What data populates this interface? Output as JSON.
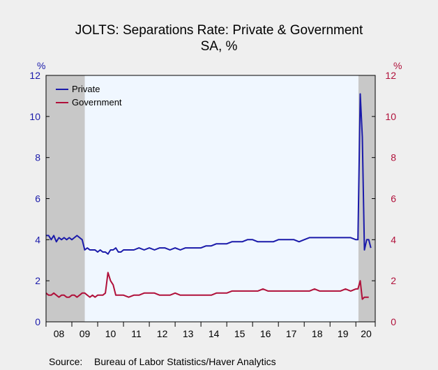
{
  "chart_data": {
    "type": "line",
    "title": "JOLTS: Separations Rate: Private & Government",
    "subtitle": "SA, %",
    "left_axis": {
      "unit_label": "%",
      "ticks": [
        0,
        2,
        4,
        6,
        8,
        10,
        12
      ],
      "range": [
        0,
        12
      ],
      "color": "#1a1aaa"
    },
    "right_axis": {
      "unit_label": "%",
      "ticks": [
        0,
        2,
        4,
        6,
        8,
        10,
        12
      ],
      "range": [
        0,
        12
      ],
      "color": "#b0103a"
    },
    "x_axis": {
      "range": [
        2008.0,
        2020.75
      ],
      "ticks": [
        2008,
        2009,
        2010,
        2011,
        2012,
        2013,
        2014,
        2015,
        2016,
        2017,
        2018,
        2019,
        2020,
        2020.75
      ],
      "labels": [
        {
          "label": "08",
          "x": 2008.5
        },
        {
          "label": "09",
          "x": 2009.5
        },
        {
          "label": "10",
          "x": 2010.5
        },
        {
          "label": "11",
          "x": 2011.5
        },
        {
          "label": "12",
          "x": 2012.5
        },
        {
          "label": "13",
          "x": 2013.5
        },
        {
          "label": "14",
          "x": 2014.5
        },
        {
          "label": "15",
          "x": 2015.5
        },
        {
          "label": "16",
          "x": 2016.5
        },
        {
          "label": "17",
          "x": 2017.5
        },
        {
          "label": "18",
          "x": 2018.5
        },
        {
          "label": "19",
          "x": 2019.5
        },
        {
          "label": "20",
          "x": 2020.4
        }
      ]
    },
    "recessions": [
      {
        "start": 2008.0,
        "end": 2009.5
      },
      {
        "start": 2020.1,
        "end": 2020.75
      }
    ],
    "grid": false,
    "legend_placement": "top-left",
    "series": [
      {
        "name": "Private",
        "color": "#1a1aaa",
        "points": [
          [
            2008.0,
            4.2
          ],
          [
            2008.1,
            4.2
          ],
          [
            2008.2,
            4.0
          ],
          [
            2008.3,
            4.2
          ],
          [
            2008.4,
            3.9
          ],
          [
            2008.5,
            4.1
          ],
          [
            2008.6,
            4.0
          ],
          [
            2008.7,
            4.1
          ],
          [
            2008.8,
            4.0
          ],
          [
            2008.9,
            4.1
          ],
          [
            2009.0,
            4.0
          ],
          [
            2009.1,
            4.1
          ],
          [
            2009.2,
            4.2
          ],
          [
            2009.3,
            4.1
          ],
          [
            2009.4,
            4.0
          ],
          [
            2009.5,
            3.5
          ],
          [
            2009.6,
            3.6
          ],
          [
            2009.7,
            3.5
          ],
          [
            2009.8,
            3.5
          ],
          [
            2009.9,
            3.5
          ],
          [
            2010.0,
            3.4
          ],
          [
            2010.1,
            3.5
          ],
          [
            2010.2,
            3.4
          ],
          [
            2010.3,
            3.4
          ],
          [
            2010.4,
            3.3
          ],
          [
            2010.5,
            3.5
          ],
          [
            2010.6,
            3.5
          ],
          [
            2010.7,
            3.6
          ],
          [
            2010.8,
            3.4
          ],
          [
            2010.9,
            3.4
          ],
          [
            2011.0,
            3.5
          ],
          [
            2011.2,
            3.5
          ],
          [
            2011.4,
            3.5
          ],
          [
            2011.6,
            3.6
          ],
          [
            2011.8,
            3.5
          ],
          [
            2012.0,
            3.6
          ],
          [
            2012.2,
            3.5
          ],
          [
            2012.4,
            3.6
          ],
          [
            2012.6,
            3.6
          ],
          [
            2012.8,
            3.5
          ],
          [
            2013.0,
            3.6
          ],
          [
            2013.2,
            3.5
          ],
          [
            2013.4,
            3.6
          ],
          [
            2013.6,
            3.6
          ],
          [
            2013.8,
            3.6
          ],
          [
            2014.0,
            3.6
          ],
          [
            2014.2,
            3.7
          ],
          [
            2014.4,
            3.7
          ],
          [
            2014.6,
            3.8
          ],
          [
            2014.8,
            3.8
          ],
          [
            2015.0,
            3.8
          ],
          [
            2015.2,
            3.9
          ],
          [
            2015.4,
            3.9
          ],
          [
            2015.6,
            3.9
          ],
          [
            2015.8,
            4.0
          ],
          [
            2016.0,
            4.0
          ],
          [
            2016.2,
            3.9
          ],
          [
            2016.4,
            3.9
          ],
          [
            2016.6,
            3.9
          ],
          [
            2016.8,
            3.9
          ],
          [
            2017.0,
            4.0
          ],
          [
            2017.2,
            4.0
          ],
          [
            2017.4,
            4.0
          ],
          [
            2017.6,
            4.0
          ],
          [
            2017.8,
            3.9
          ],
          [
            2018.0,
            4.0
          ],
          [
            2018.2,
            4.1
          ],
          [
            2018.4,
            4.1
          ],
          [
            2018.6,
            4.1
          ],
          [
            2018.8,
            4.1
          ],
          [
            2019.0,
            4.1
          ],
          [
            2019.2,
            4.1
          ],
          [
            2019.4,
            4.1
          ],
          [
            2019.6,
            4.1
          ],
          [
            2019.8,
            4.1
          ],
          [
            2020.0,
            4.0
          ],
          [
            2020.08,
            4.0
          ],
          [
            2020.17,
            11.1
          ],
          [
            2020.25,
            9.0
          ],
          [
            2020.33,
            3.5
          ],
          [
            2020.42,
            4.0
          ],
          [
            2020.5,
            4.0
          ],
          [
            2020.58,
            3.6
          ]
        ]
      },
      {
        "name": "Government",
        "color": "#b0103a",
        "points": [
          [
            2008.0,
            1.4
          ],
          [
            2008.1,
            1.3
          ],
          [
            2008.2,
            1.3
          ],
          [
            2008.3,
            1.4
          ],
          [
            2008.4,
            1.3
          ],
          [
            2008.5,
            1.2
          ],
          [
            2008.6,
            1.3
          ],
          [
            2008.7,
            1.3
          ],
          [
            2008.8,
            1.2
          ],
          [
            2008.9,
            1.2
          ],
          [
            2009.0,
            1.3
          ],
          [
            2009.1,
            1.3
          ],
          [
            2009.2,
            1.2
          ],
          [
            2009.3,
            1.3
          ],
          [
            2009.4,
            1.4
          ],
          [
            2009.5,
            1.4
          ],
          [
            2009.6,
            1.3
          ],
          [
            2009.7,
            1.2
          ],
          [
            2009.8,
            1.3
          ],
          [
            2009.9,
            1.2
          ],
          [
            2010.0,
            1.3
          ],
          [
            2010.1,
            1.3
          ],
          [
            2010.2,
            1.3
          ],
          [
            2010.3,
            1.4
          ],
          [
            2010.4,
            2.4
          ],
          [
            2010.5,
            2.0
          ],
          [
            2010.6,
            1.8
          ],
          [
            2010.7,
            1.3
          ],
          [
            2010.8,
            1.3
          ],
          [
            2010.9,
            1.3
          ],
          [
            2011.0,
            1.3
          ],
          [
            2011.2,
            1.2
          ],
          [
            2011.4,
            1.3
          ],
          [
            2011.6,
            1.3
          ],
          [
            2011.8,
            1.4
          ],
          [
            2012.0,
            1.4
          ],
          [
            2012.2,
            1.4
          ],
          [
            2012.4,
            1.3
          ],
          [
            2012.6,
            1.3
          ],
          [
            2012.8,
            1.3
          ],
          [
            2013.0,
            1.4
          ],
          [
            2013.2,
            1.3
          ],
          [
            2013.4,
            1.3
          ],
          [
            2013.6,
            1.3
          ],
          [
            2013.8,
            1.3
          ],
          [
            2014.0,
            1.3
          ],
          [
            2014.2,
            1.3
          ],
          [
            2014.4,
            1.3
          ],
          [
            2014.6,
            1.4
          ],
          [
            2014.8,
            1.4
          ],
          [
            2015.0,
            1.4
          ],
          [
            2015.2,
            1.5
          ],
          [
            2015.4,
            1.5
          ],
          [
            2015.6,
            1.5
          ],
          [
            2015.8,
            1.5
          ],
          [
            2016.0,
            1.5
          ],
          [
            2016.2,
            1.5
          ],
          [
            2016.4,
            1.6
          ],
          [
            2016.6,
            1.5
          ],
          [
            2016.8,
            1.5
          ],
          [
            2017.0,
            1.5
          ],
          [
            2017.2,
            1.5
          ],
          [
            2017.4,
            1.5
          ],
          [
            2017.6,
            1.5
          ],
          [
            2017.8,
            1.5
          ],
          [
            2018.0,
            1.5
          ],
          [
            2018.2,
            1.5
          ],
          [
            2018.4,
            1.6
          ],
          [
            2018.6,
            1.5
          ],
          [
            2018.8,
            1.5
          ],
          [
            2019.0,
            1.5
          ],
          [
            2019.2,
            1.5
          ],
          [
            2019.4,
            1.5
          ],
          [
            2019.6,
            1.6
          ],
          [
            2019.8,
            1.5
          ],
          [
            2020.0,
            1.6
          ],
          [
            2020.08,
            1.6
          ],
          [
            2020.17,
            2.0
          ],
          [
            2020.25,
            1.1
          ],
          [
            2020.33,
            1.2
          ],
          [
            2020.42,
            1.2
          ],
          [
            2020.5,
            1.2
          ]
        ]
      }
    ]
  },
  "source_label": "Source:",
  "source_text": "Bureau of Labor Statistics/Haver Analytics"
}
